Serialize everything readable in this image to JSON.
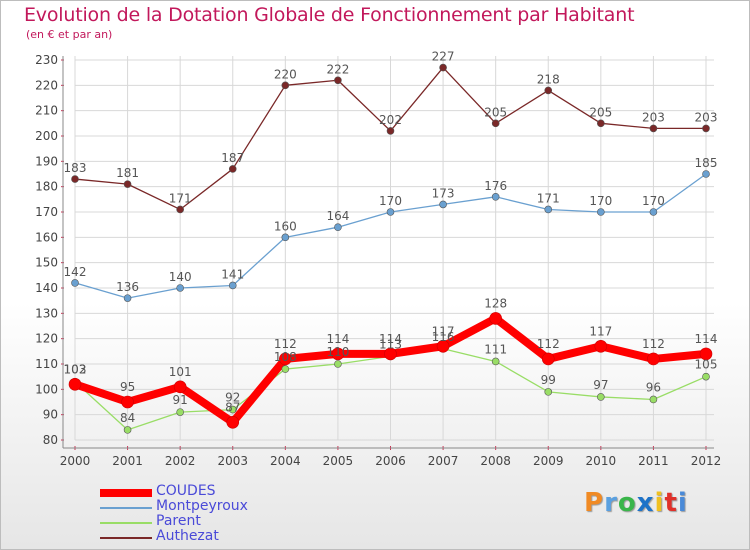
{
  "header": {
    "title": "Evolution de la Dotation Globale de Fonctionnement par Habitant",
    "subtitle": "(en € et par an)"
  },
  "logo": {
    "text": "Proxiti",
    "letters": [
      "P",
      "r",
      "o",
      "x",
      "i",
      "t",
      "i"
    ]
  },
  "colors": {
    "COUDES": "#ff0000",
    "Montpeyroux": "#6aa0d0",
    "Parent": "#99dd66",
    "Authezat": "#7a2828",
    "axis_text": "#444444",
    "grid": "#d8d8d8",
    "logo": [
      "#f08a24",
      "#5aa0e0",
      "#3ab54a",
      "#1e73c8",
      "#f0c020",
      "#e0302a",
      "#4a8ad8"
    ]
  },
  "chart_data": {
    "type": "line",
    "title": "Evolution de la Dotation Globale de Fonctionnement par Habitant",
    "subtitle": "(en € et par an)",
    "xlabel": "",
    "ylabel": "",
    "x": [
      "2000",
      "2001",
      "2002",
      "2003",
      "2004",
      "2005",
      "2006",
      "2007",
      "2008",
      "2009",
      "2010",
      "2011",
      "2012"
    ],
    "ylim": [
      80,
      230
    ],
    "yticks": [
      80,
      90,
      100,
      110,
      120,
      130,
      140,
      150,
      160,
      170,
      180,
      190,
      200,
      210,
      220,
      230
    ],
    "grid": true,
    "legend_position": "bottom-left",
    "series": [
      {
        "name": "COUDES",
        "values": [
          102,
          95,
          101,
          87,
          112,
          114,
          114,
          117,
          128,
          112,
          117,
          112,
          114
        ],
        "labels": [
          "102",
          "95",
          "101",
          "87",
          "112",
          "114",
          "114",
          "117",
          "128",
          "112",
          "117",
          "112",
          "114"
        ]
      },
      {
        "name": "Montpeyroux",
        "values": [
          142,
          136,
          140,
          141,
          160,
          164,
          170,
          173,
          176,
          171,
          170,
          170,
          185
        ],
        "labels": [
          "142",
          "136",
          "140",
          "141",
          "160",
          "164",
          "170",
          "173",
          "176",
          "171",
          "170",
          "170",
          "185"
        ]
      },
      {
        "name": "Parent",
        "values": [
          103,
          84,
          91,
          92,
          108,
          110,
          113,
          116,
          111,
          99,
          97,
          96,
          105
        ],
        "labels": [
          "103",
          "84",
          "91",
          "92",
          "108",
          "110",
          "113",
          "116",
          "111",
          "99",
          "97",
          "96",
          "105"
        ]
      },
      {
        "name": "Authezat",
        "values": [
          183,
          181,
          171,
          187,
          220,
          222,
          202,
          227,
          205,
          218,
          205,
          203,
          203
        ],
        "labels": [
          "183",
          "181",
          "171",
          "187",
          "220",
          "222",
          "202",
          "227",
          "205",
          "218",
          "205",
          "203",
          "203"
        ]
      }
    ]
  }
}
